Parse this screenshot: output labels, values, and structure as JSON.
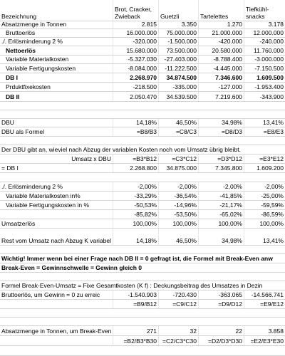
{
  "header": {
    "label": "Bezeichnung",
    "products": [
      "Brot, Cracker, Zwieback",
      "Guetzli",
      "Tartelettes",
      "Tiefkühl-snacks"
    ]
  },
  "rows": [
    {
      "label": "Absatzmenge in Tonnen",
      "values": [
        "2.815",
        "3.350",
        "1.270",
        "3.178"
      ]
    },
    {
      "label": "Bruttoerlös",
      "values": [
        "16.000.000",
        "75.000.000",
        "21.000.000",
        "12.000.000"
      ]
    },
    {
      "label": "./. Erlösminderung 2 %",
      "values": [
        "-320.000",
        "-1.500.000",
        "-420.000",
        "-240.000"
      ]
    },
    {
      "label": "Nettoerlös",
      "values": [
        "15.680.000",
        "73.500.000",
        "20.580.000",
        "11.760.000"
      ]
    },
    {
      "label": "Variable Materialkosten",
      "values": [
        "-5.327.030",
        "-27.403.000",
        "-8.788.400",
        "-3.000.000"
      ]
    },
    {
      "label": "Variable Fertigungskosten",
      "values": [
        "-8.084.000",
        "-11.222.500",
        "-4.445.000",
        "-7.150.500"
      ]
    },
    {
      "label": "DB I",
      "values": [
        "2.268.970",
        "34.874.500",
        "7.346.600",
        "1.609.500"
      ]
    },
    {
      "label": "Prduktfixekosten",
      "values": [
        "-218.500",
        "-335.000",
        "-127.000",
        "-1.953.400"
      ]
    },
    {
      "label": "DB II",
      "values": [
        "2.050.470",
        "34.539.500",
        "7.219.600",
        "-343.900"
      ]
    },
    {
      "label": "DBU",
      "values": [
        "14,18%",
        "46,50%",
        "34,98%",
        "13,41%"
      ]
    },
    {
      "label": "DBU als Formel",
      "values": [
        "=B8/B3",
        "=C8/C3",
        "=D8/D3",
        "=E8/E3"
      ]
    }
  ],
  "explanation": "Der DBU gibt an, wieviel nach Abzug der variablen Kosten noch vom Umsatz übrig bleibt.",
  "umsatz_row": {
    "label": "Umsatz x DBU",
    "values": [
      "=B3*B12",
      "=C3*C12",
      "=D3*D12",
      "=E3*E12"
    ]
  },
  "dbi_row": {
    "label": "= DB I",
    "values": [
      "2.268.800",
      "34.875.000",
      "7.345.800",
      "1.609.200"
    ]
  },
  "pct_rows": [
    {
      "label": "./. Erlösminderung 2 %",
      "values": [
        "-2,00%",
        "-2,00%",
        "-2,00%",
        "-2,00%"
      ]
    },
    {
      "label": "Variable Materialkosten in%",
      "values": [
        "-33,29%",
        "-36,54%",
        "-41,85%",
        "-25,00%"
      ]
    },
    {
      "label": "Variable Fertigungskosten in %",
      "values": [
        "-50,53%",
        "-14,96%",
        "-21,17%",
        "-59,59%"
      ]
    },
    {
      "label": "",
      "values": [
        "-85,82%",
        "-53,50%",
        "-65,02%",
        "-86,59%"
      ]
    },
    {
      "label": "Umsatzerlös",
      "values": [
        "100,00%",
        "100,00%",
        "100,00%",
        "100,00%"
      ]
    }
  ],
  "rest_row": {
    "label": "Rest vom Umsatz nach Abzug K variabel",
    "values": [
      "14,18%",
      "46,50%",
      "34,98%",
      "13,41%"
    ]
  },
  "warning": "Wichtig! Immer wenn bei einer Frage nach DB II = 0 gefragt ist, die Formel mit Break-Even anw",
  "break_even": "Break-Even = Gewinnschwelle = Gewinn gleich 0",
  "formula": "Formel Break-Even-Umsatz = Fixe Gesamtkosten (K f) : Deckungsbeitrag des Umsatzes in Dezin",
  "brutto_row": {
    "label": "Bruttoerlös, um Gewinn = 0 zu erreic",
    "values": [
      "-1.540.903",
      "-720.430",
      "-363.065",
      "-14.566.741"
    ]
  },
  "brutto_formula_row": {
    "values": [
      "=B9/B12",
      "=C9/C12",
      "=D9/D12",
      "=E9/E12"
    ]
  },
  "absatz_row": {
    "label": "Absatzmenge in Tonnen, um Break-Even zu erreichen",
    "values": [
      "271",
      "32",
      "22",
      "3.858"
    ]
  },
  "absatz_formula_row": {
    "values": [
      "=B2/B3*B30",
      "=C2/C3*C30",
      "=D2/D3*D30",
      "=E2/E3*E30"
    ]
  }
}
